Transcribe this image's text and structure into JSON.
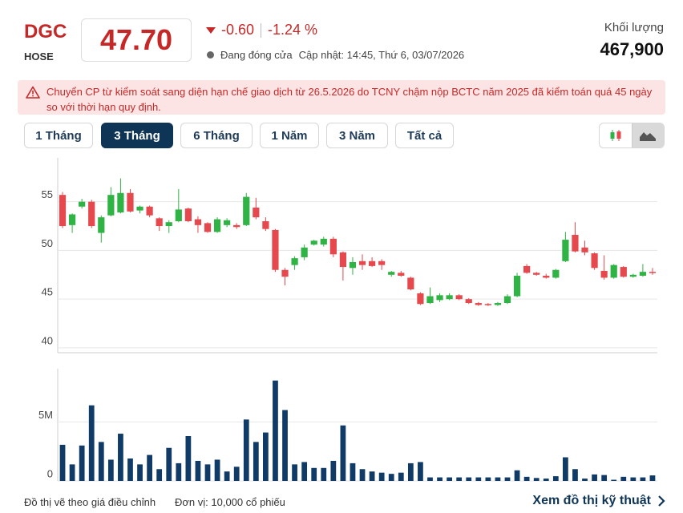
{
  "header": {
    "symbol": "DGC",
    "exchange": "HOSE",
    "price": "47.70",
    "change": "-0.60",
    "change_pct": "-1.24 %",
    "status": "Đang đóng cửa",
    "updated": "Cập nhật: 14:45, Thứ 6, 03/07/2026",
    "volume_label": "Khối lượng",
    "volume": "467,900"
  },
  "alert": {
    "text": "Chuyển CP từ kiểm soát sang diện hạn chế giao dịch từ 26.5.2026 do TCNY chậm nộp BCTC năm 2025 đã kiểm toán quá 45 ngày so với thời hạn quy định."
  },
  "range_buttons": {
    "items": [
      "1 Tháng",
      "3 Tháng",
      "6 Tháng",
      "1 Năm",
      "3 Năm",
      "Tất cả"
    ],
    "active": 1
  },
  "chart_data": [
    {
      "type": "candlestick",
      "up_color": "#2fb344",
      "down_color": "#e5484d",
      "ylim": [
        39.5,
        59.5
      ],
      "yticks": [
        40,
        45,
        50,
        55
      ],
      "grid": true,
      "open": [
        55.7,
        52.6,
        54.5,
        55.0,
        51.8,
        53.6,
        53.9,
        55.9,
        54.1,
        54.5,
        53.3,
        52.5,
        53.0,
        54.3,
        53.2,
        52.8,
        51.9,
        52.6,
        52.6,
        52.6,
        54.4,
        53.0,
        52.1,
        48.0,
        48.5,
        49.3,
        50.6,
        50.6,
        51.2,
        49.8,
        48.2,
        48.9,
        48.9,
        48.9,
        47.5,
        47.7,
        47.2,
        45.6,
        44.6,
        44.9,
        45.0,
        45.4,
        45.0,
        44.6,
        44.5,
        44.4,
        44.6,
        45.3,
        48.4,
        47.7,
        47.4,
        47.2,
        48.9,
        51.6,
        50.3,
        49.7,
        47.9,
        47.2,
        48.3,
        47.3,
        47.4,
        47.8
      ],
      "high": [
        56.0,
        53.8,
        55.3,
        55.2,
        53.6,
        56.5,
        57.4,
        56.3,
        54.6,
        54.6,
        53.4,
        53.1,
        56.3,
        54.4,
        53.5,
        52.9,
        53.4,
        53.3,
        52.8,
        55.9,
        55.4,
        53.4,
        52.2,
        48.2,
        49.4,
        50.6,
        51.1,
        51.4,
        51.4,
        49.9,
        49.3,
        49.6,
        49.3,
        49.1,
        47.9,
        47.9,
        47.3,
        45.7,
        46.2,
        45.6,
        45.6,
        45.5,
        45.1,
        44.7,
        44.6,
        44.7,
        45.5,
        47.7,
        48.6,
        47.8,
        47.6,
        48.1,
        51.9,
        52.9,
        51.0,
        49.8,
        49.5,
        48.6,
        48.4,
        47.6,
        48.6,
        48.2
      ],
      "low": [
        52.3,
        51.8,
        54.3,
        52.3,
        50.8,
        53.5,
        53.8,
        53.9,
        53.8,
        53.4,
        52.0,
        51.8,
        52.9,
        52.9,
        51.8,
        51.8,
        51.8,
        52.4,
        52.2,
        52.5,
        53.2,
        52.0,
        47.8,
        46.4,
        48.0,
        49.0,
        50.5,
        50.4,
        49.3,
        46.9,
        47.5,
        48.0,
        48.3,
        48.0,
        47.3,
        47.3,
        45.9,
        44.4,
        44.5,
        44.7,
        44.9,
        44.9,
        44.5,
        44.3,
        44.3,
        44.3,
        44.5,
        45.2,
        47.6,
        47.4,
        47.1,
        47.1,
        48.8,
        49.8,
        49.5,
        48.0,
        47.0,
        47.1,
        47.2,
        47.2,
        47.3,
        47.5
      ],
      "close": [
        52.5,
        53.7,
        55.0,
        52.5,
        53.4,
        55.7,
        55.9,
        54.0,
        54.5,
        53.6,
        52.5,
        52.9,
        54.2,
        53.0,
        52.6,
        51.9,
        53.2,
        53.1,
        52.4,
        55.5,
        53.4,
        52.2,
        48.0,
        47.3,
        49.2,
        50.3,
        51.0,
        51.2,
        49.6,
        48.3,
        48.8,
        48.5,
        48.4,
        48.5,
        47.8,
        47.4,
        46.0,
        44.5,
        45.3,
        45.4,
        45.4,
        45.0,
        44.6,
        44.4,
        44.4,
        44.6,
        45.3,
        47.4,
        47.7,
        47.5,
        47.2,
        48.0,
        51.1,
        49.9,
        49.8,
        48.2,
        47.2,
        48.5,
        47.3,
        47.5,
        47.8,
        47.7
      ]
    },
    {
      "type": "bar",
      "color": "#0f3b66",
      "ylim": [
        0,
        9500000
      ],
      "yticks": [
        0,
        {
          "value": 5000000,
          "label": "5M"
        }
      ],
      "grid": true,
      "values": [
        3060000,
        1400000,
        3000000,
        6400000,
        3300000,
        1800000,
        4000000,
        1900000,
        1400000,
        2200000,
        1000000,
        2800000,
        1500000,
        3800000,
        1700000,
        1400000,
        1800000,
        800000,
        1200000,
        5200000,
        3300000,
        4100000,
        8500000,
        6000000,
        1400000,
        1600000,
        1100000,
        1100000,
        1700000,
        4700000,
        1500000,
        1000000,
        800000,
        700000,
        600000,
        700000,
        1500000,
        1600000,
        300000,
        300000,
        300000,
        300000,
        300000,
        300000,
        300000,
        300000,
        300000,
        900000,
        350000,
        250000,
        200000,
        400000,
        2000000,
        1000000,
        200000,
        550000,
        500000,
        100000,
        350000,
        300000,
        300000,
        467900
      ]
    }
  ],
  "footer": {
    "note": "Đồ thị vẽ theo giá điều chỉnh",
    "unit": "Đơn vị: 10,000 cổ phiếu",
    "link": "Xem đồ thị kỹ thuật"
  }
}
